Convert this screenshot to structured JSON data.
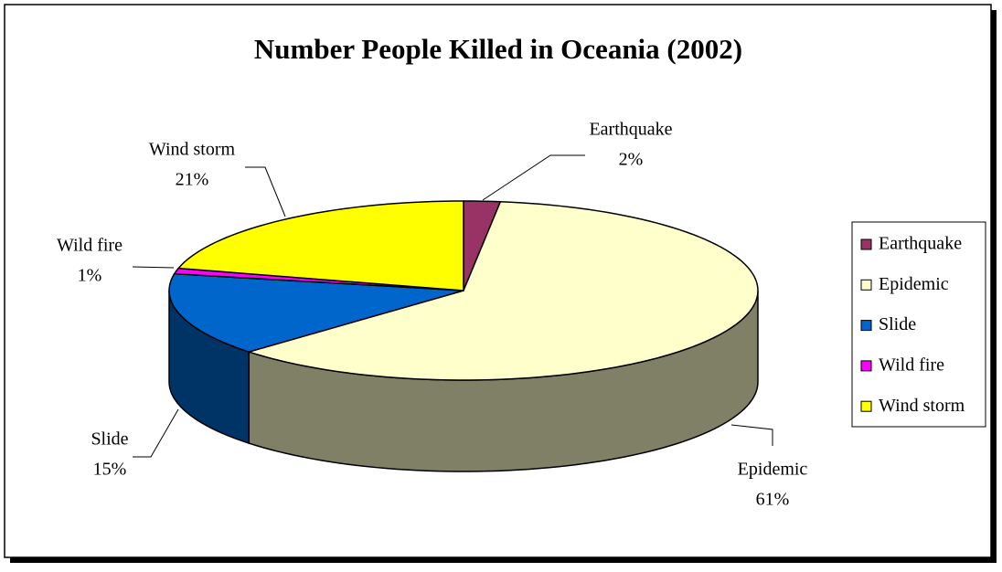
{
  "chart_data": {
    "type": "pie3d",
    "title": "Number People Killed in Oceania (2002)",
    "categories": [
      "Earthquake",
      "Epidemic",
      "Slide",
      "Wild fire",
      "Wind storm"
    ],
    "values": [
      2,
      61,
      15,
      1,
      21
    ],
    "value_labels": [
      "2%",
      "61%",
      "15%",
      "1%",
      "21%"
    ],
    "colors": [
      "#993366",
      "#FFFFCC",
      "#0066CC",
      "#FF00FF",
      "#FFFF00"
    ],
    "legend": "right"
  }
}
